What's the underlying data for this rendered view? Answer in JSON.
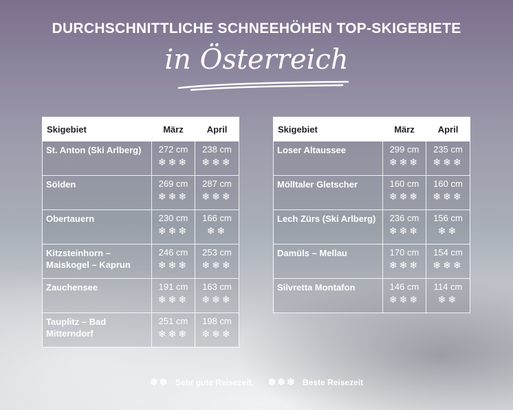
{
  "header": {
    "title": "DURCHSCHNITTLICHE SCHNEEHÖHEN TOP-SKIGEBIETE",
    "subtitle": "in Österreich"
  },
  "columns": {
    "area": "Skigebiet",
    "march": "März",
    "april": "April"
  },
  "snowflake_glyph": "❄",
  "left_table": [
    {
      "name": "St. Anton (Ski Arlberg)",
      "march": "272 cm",
      "march_rating": 3,
      "april": "238 cm",
      "april_rating": 3
    },
    {
      "name": "Sölden",
      "march": "269 cm",
      "march_rating": 3,
      "april": "287 cm",
      "april_rating": 3
    },
    {
      "name": "Obertauern",
      "march": "230 cm",
      "march_rating": 3,
      "april": "166 cm",
      "april_rating": 2
    },
    {
      "name": "Kitzsteinhorn – Maiskogel – Kaprun",
      "march": "246 cm",
      "march_rating": 3,
      "april": "253 cm",
      "april_rating": 3
    },
    {
      "name": "Zauchensee",
      "march": "191 cm",
      "march_rating": 3,
      "april": "163 cm",
      "april_rating": 3
    },
    {
      "name": "Tauplitz – Bad Mitterndorf",
      "march": "251 cm",
      "march_rating": 3,
      "april": "198 cm",
      "april_rating": 3
    }
  ],
  "right_table": [
    {
      "name": "Loser Altaussee",
      "march": "299 cm",
      "march_rating": 3,
      "april": "235 cm",
      "april_rating": 3
    },
    {
      "name": "Mölltaler Gletscher",
      "march": "160 cm",
      "march_rating": 3,
      "april": "160 cm",
      "april_rating": 3
    },
    {
      "name": "Lech Zürs (Ski Arlberg)",
      "march": "236 cm",
      "march_rating": 3,
      "april": "156 cm",
      "april_rating": 2
    },
    {
      "name": "Damüls – Mellau",
      "march": "170 cm",
      "march_rating": 3,
      "april": "154 cm",
      "april_rating": 3
    },
    {
      "name": "Silvretta Montafon",
      "march": "146 cm",
      "march_rating": 3,
      "april": "114 cm",
      "april_rating": 2
    }
  ],
  "legend": {
    "good_rating": 2,
    "good_label": "Sehr gute Reisezeit,",
    "best_rating": 3,
    "best_label": "Beste Reisezeit"
  },
  "colors": {
    "header_bg": "#ffffff",
    "text": "#ffffff",
    "header_text": "#1f1f24"
  }
}
